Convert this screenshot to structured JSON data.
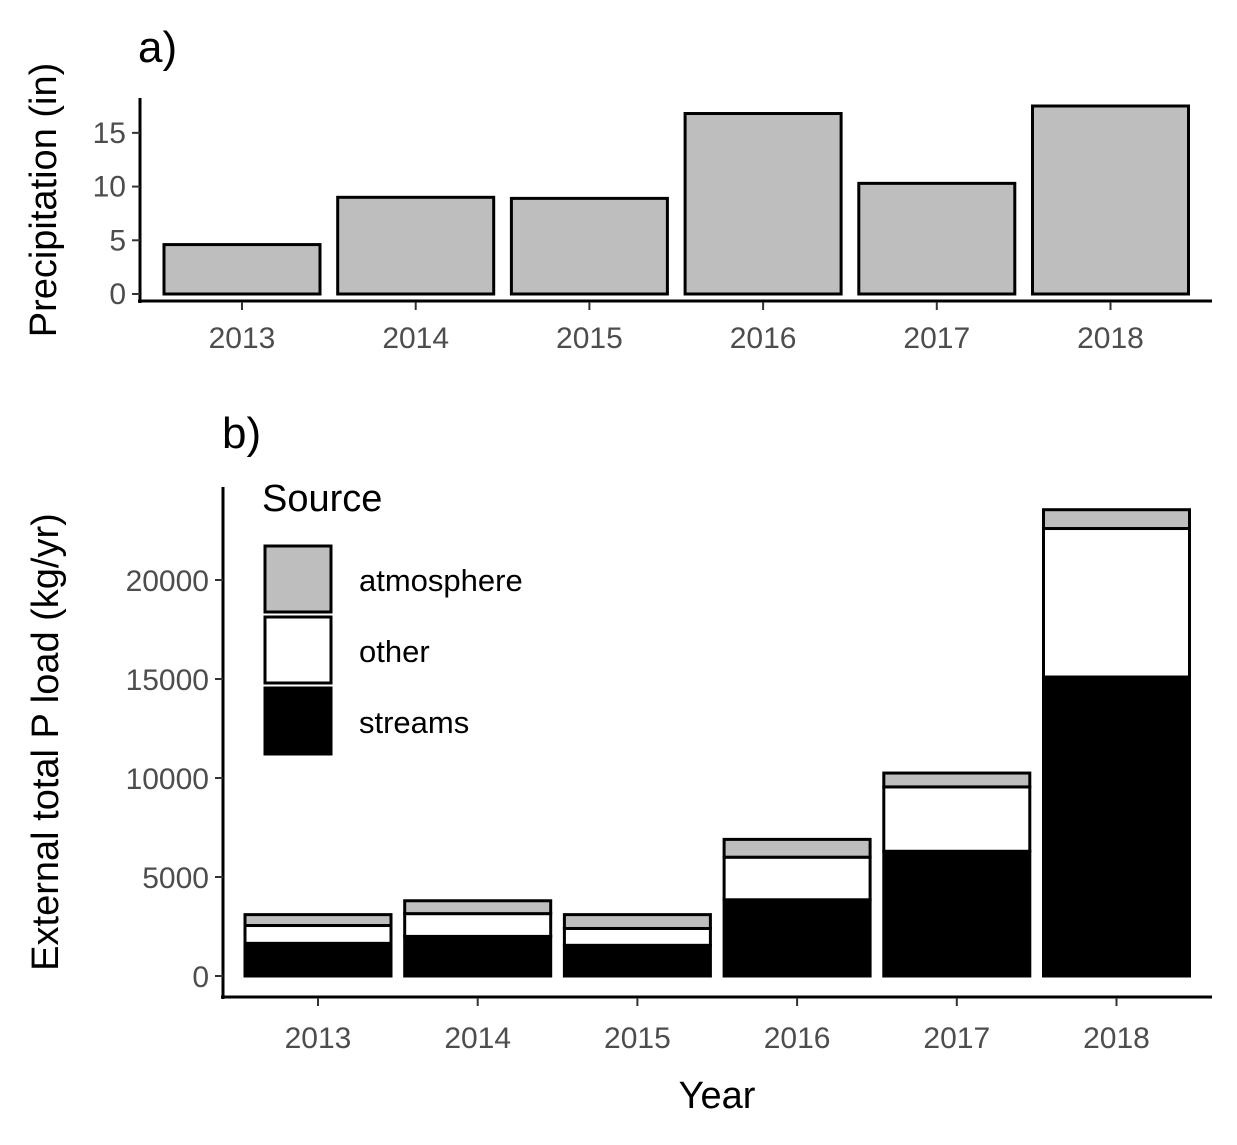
{
  "chart_data": [
    {
      "type": "bar",
      "panel_label": "a)",
      "title": "",
      "xlabel": "",
      "ylabel": "Precipitation (in)",
      "categories": [
        "2013",
        "2014",
        "2015",
        "2016",
        "2017",
        "2018"
      ],
      "values": [
        4.6,
        9.0,
        8.9,
        16.8,
        10.3,
        17.5
      ],
      "ylim": [
        0,
        17.5
      ],
      "yticks": [
        0,
        5,
        10,
        15
      ],
      "grid": false,
      "legend": "none",
      "colors": {
        "bar": "#bebebe",
        "outline": "#000000"
      }
    },
    {
      "type": "bar",
      "stacked": true,
      "panel_label": "b)",
      "title": "",
      "xlabel": "Year",
      "ylabel": "External total P load (kg/yr)",
      "categories": [
        "2013",
        "2014",
        "2015",
        "2016",
        "2017",
        "2018"
      ],
      "series": [
        {
          "name": "streams",
          "color": "#000000",
          "values": [
            1650,
            2000,
            1550,
            3850,
            6300,
            15100
          ]
        },
        {
          "name": "other",
          "color": "#ffffff",
          "values": [
            900,
            1150,
            850,
            2150,
            3250,
            7500
          ]
        },
        {
          "name": "atmosphere",
          "color": "#bebebe",
          "values": [
            550,
            650,
            700,
            900,
            700,
            950
          ]
        }
      ],
      "ylim": [
        0,
        23600
      ],
      "yticks": [
        0,
        5000,
        10000,
        15000,
        20000
      ],
      "grid": false,
      "legend": {
        "title": "Source",
        "position": "top-left",
        "order": [
          "atmosphere",
          "other",
          "streams"
        ]
      }
    }
  ]
}
